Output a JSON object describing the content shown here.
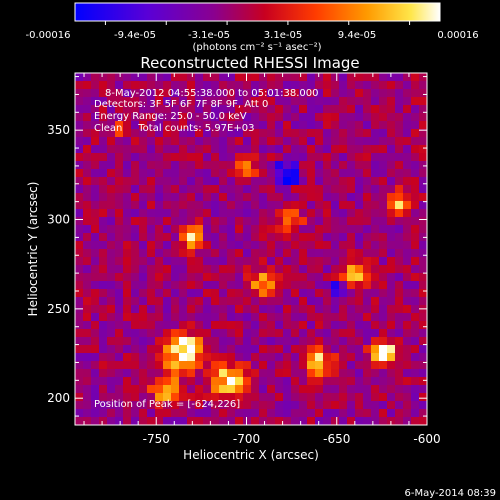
{
  "colorbar": {
    "tick_labels": [
      "-0.00016",
      "-9.4e-05",
      "-3.1e-05",
      "3.1e-05",
      "9.4e-05",
      "0.00016"
    ],
    "unit_label": "(photons cm⁻² s⁻¹ asec⁻²)",
    "colormap": [
      "#0000ff",
      "#5a00d6",
      "#8a0090",
      "#c80020",
      "#ff3c00",
      "#ff9a00",
      "#ffe64a",
      "#ffffff"
    ]
  },
  "chart_data": {
    "type": "heatmap",
    "title": "Reconstructed RHESSI Image",
    "xlabel": "Heliocentric X (arcsec)",
    "ylabel": "Heliocentric Y (arcsec)",
    "xlim": [
      -795,
      -600
    ],
    "ylim": [
      185,
      382
    ],
    "x_ticks": [
      -750,
      -700,
      -650,
      -600
    ],
    "y_ticks": [
      200,
      250,
      300,
      350
    ],
    "zlim": [
      -0.00016,
      0.00016
    ],
    "info_lines": [
      "8-May-2012 04:55:38.000 to 05:01:38.000",
      "Detectors: 3F 5F 6F 7F 8F 9F, Att 0",
      "Energy Range: 25.0 - 50.0 keV",
      "Clean     Total counts: 5.97E+03"
    ],
    "peak_label": "Position of Peak = [-624,226]",
    "peak": [
      -624,
      226
    ],
    "grid": false
  },
  "footer": {
    "timestamp": "6-May-2014 08:39"
  }
}
